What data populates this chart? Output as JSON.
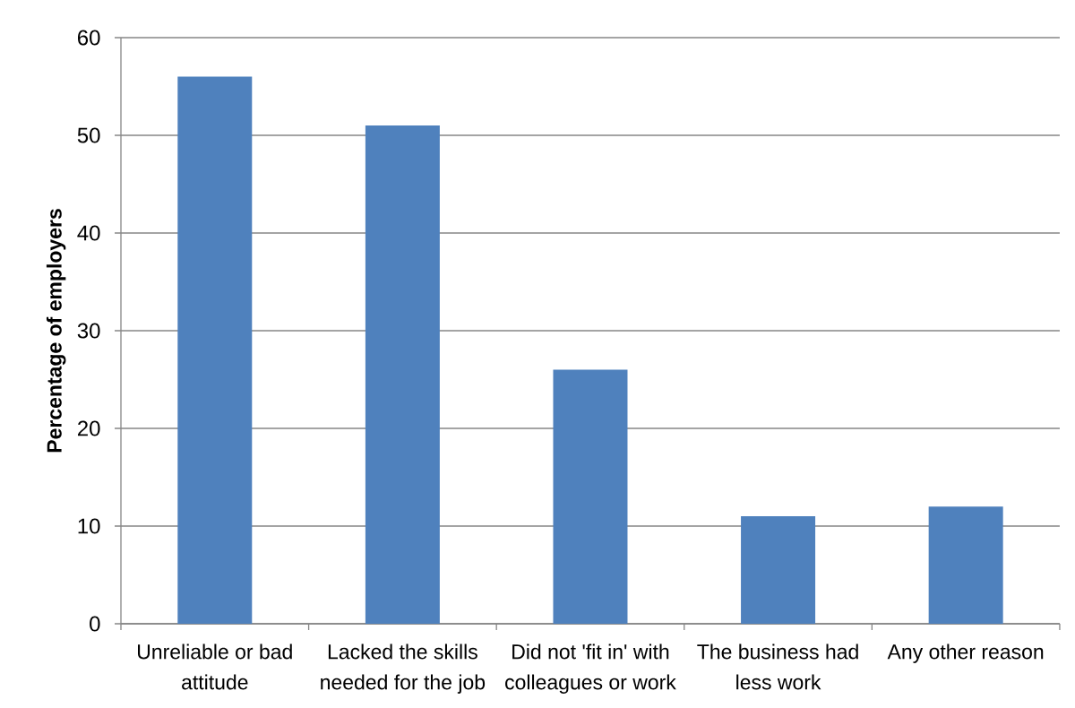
{
  "chart_data": {
    "type": "bar",
    "ylabel": "Percentage of employers",
    "categories": [
      "Unreliable or bad attitude",
      "Lacked the skills needed for the job",
      "Did not 'fit in' with colleagues or work",
      "The business had less work",
      "Any other reason"
    ],
    "values": [
      56,
      51,
      26,
      11,
      12
    ],
    "color": "#4f81bd",
    "ylim": [
      0,
      60
    ],
    "yticks": [
      0,
      10,
      20,
      30,
      40,
      50,
      60
    ],
    "grid": "y"
  }
}
